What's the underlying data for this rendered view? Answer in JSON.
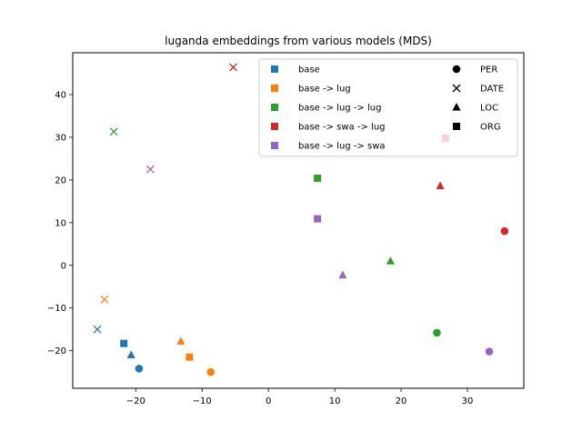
{
  "chart_data": {
    "type": "scatter",
    "title": "luganda embeddings from various models (MDS)",
    "xlabel": "",
    "ylabel": "",
    "xlim": [
      -29.5,
      38.5
    ],
    "ylim": [
      -28.8,
      49.8
    ],
    "xticks": [
      -20,
      -10,
      0,
      10,
      20,
      30
    ],
    "yticks": [
      -20,
      -10,
      0,
      10,
      20,
      30,
      40
    ],
    "grid": false,
    "legend_position": "top-right",
    "legend_models": [
      {
        "name": "base",
        "color": "#1f77b4"
      },
      {
        "name": "base -> lug",
        "color": "#ff7f0e"
      },
      {
        "name": "base -> lug -> lug",
        "color": "#2ca02c"
      },
      {
        "name": "base -> swa -> lug",
        "color": "#d62728"
      },
      {
        "name": "base -> lug -> swa",
        "color": "#9467bd"
      }
    ],
    "legend_entities": [
      {
        "name": "PER",
        "marker": "circle"
      },
      {
        "name": "DATE",
        "marker": "x"
      },
      {
        "name": "LOC",
        "marker": "triangle"
      },
      {
        "name": "ORG",
        "marker": "square"
      }
    ],
    "points": [
      {
        "series": "base",
        "entity": "PER",
        "x": -19.5,
        "y": -24.2
      },
      {
        "series": "base",
        "entity": "DATE",
        "x": -25.8,
        "y": -15.0
      },
      {
        "series": "base",
        "entity": "LOC",
        "x": -20.7,
        "y": -21.0
      },
      {
        "series": "base",
        "entity": "ORG",
        "x": -21.8,
        "y": -18.3
      },
      {
        "series": "base -> lug",
        "entity": "PER",
        "x": -8.7,
        "y": -25.0
      },
      {
        "series": "base -> lug",
        "entity": "DATE",
        "x": -24.7,
        "y": -8.0
      },
      {
        "series": "base -> lug",
        "entity": "LOC",
        "x": -13.2,
        "y": -17.8
      },
      {
        "series": "base -> lug",
        "entity": "ORG",
        "x": -11.9,
        "y": -21.5
      },
      {
        "series": "base -> lug -> lug",
        "entity": "PER",
        "x": 25.4,
        "y": -15.8
      },
      {
        "series": "base -> lug -> lug",
        "entity": "DATE",
        "x": -23.3,
        "y": 31.3
      },
      {
        "series": "base -> lug -> lug",
        "entity": "LOC",
        "x": 18.4,
        "y": 1.0
      },
      {
        "series": "base -> lug -> lug",
        "entity": "ORG",
        "x": 7.4,
        "y": 20.4
      },
      {
        "series": "base -> swa -> lug",
        "entity": "PER",
        "x": 35.6,
        "y": 8.0
      },
      {
        "series": "base -> swa -> lug",
        "entity": "DATE",
        "x": -5.3,
        "y": 46.4
      },
      {
        "series": "base -> swa -> lug",
        "entity": "LOC",
        "x": 25.9,
        "y": 18.6
      },
      {
        "series": "base -> swa -> lug",
        "entity": "ORG",
        "x": 26.7,
        "y": 29.8
      },
      {
        "series": "base -> lug -> swa",
        "entity": "PER",
        "x": 33.3,
        "y": -20.2
      },
      {
        "series": "base -> lug -> swa",
        "entity": "DATE",
        "x": -17.8,
        "y": 22.5
      },
      {
        "series": "base -> lug -> swa",
        "entity": "LOC",
        "x": 11.2,
        "y": -2.3
      },
      {
        "series": "base -> lug -> swa",
        "entity": "ORG",
        "x": 7.4,
        "y": 10.9
      }
    ]
  }
}
